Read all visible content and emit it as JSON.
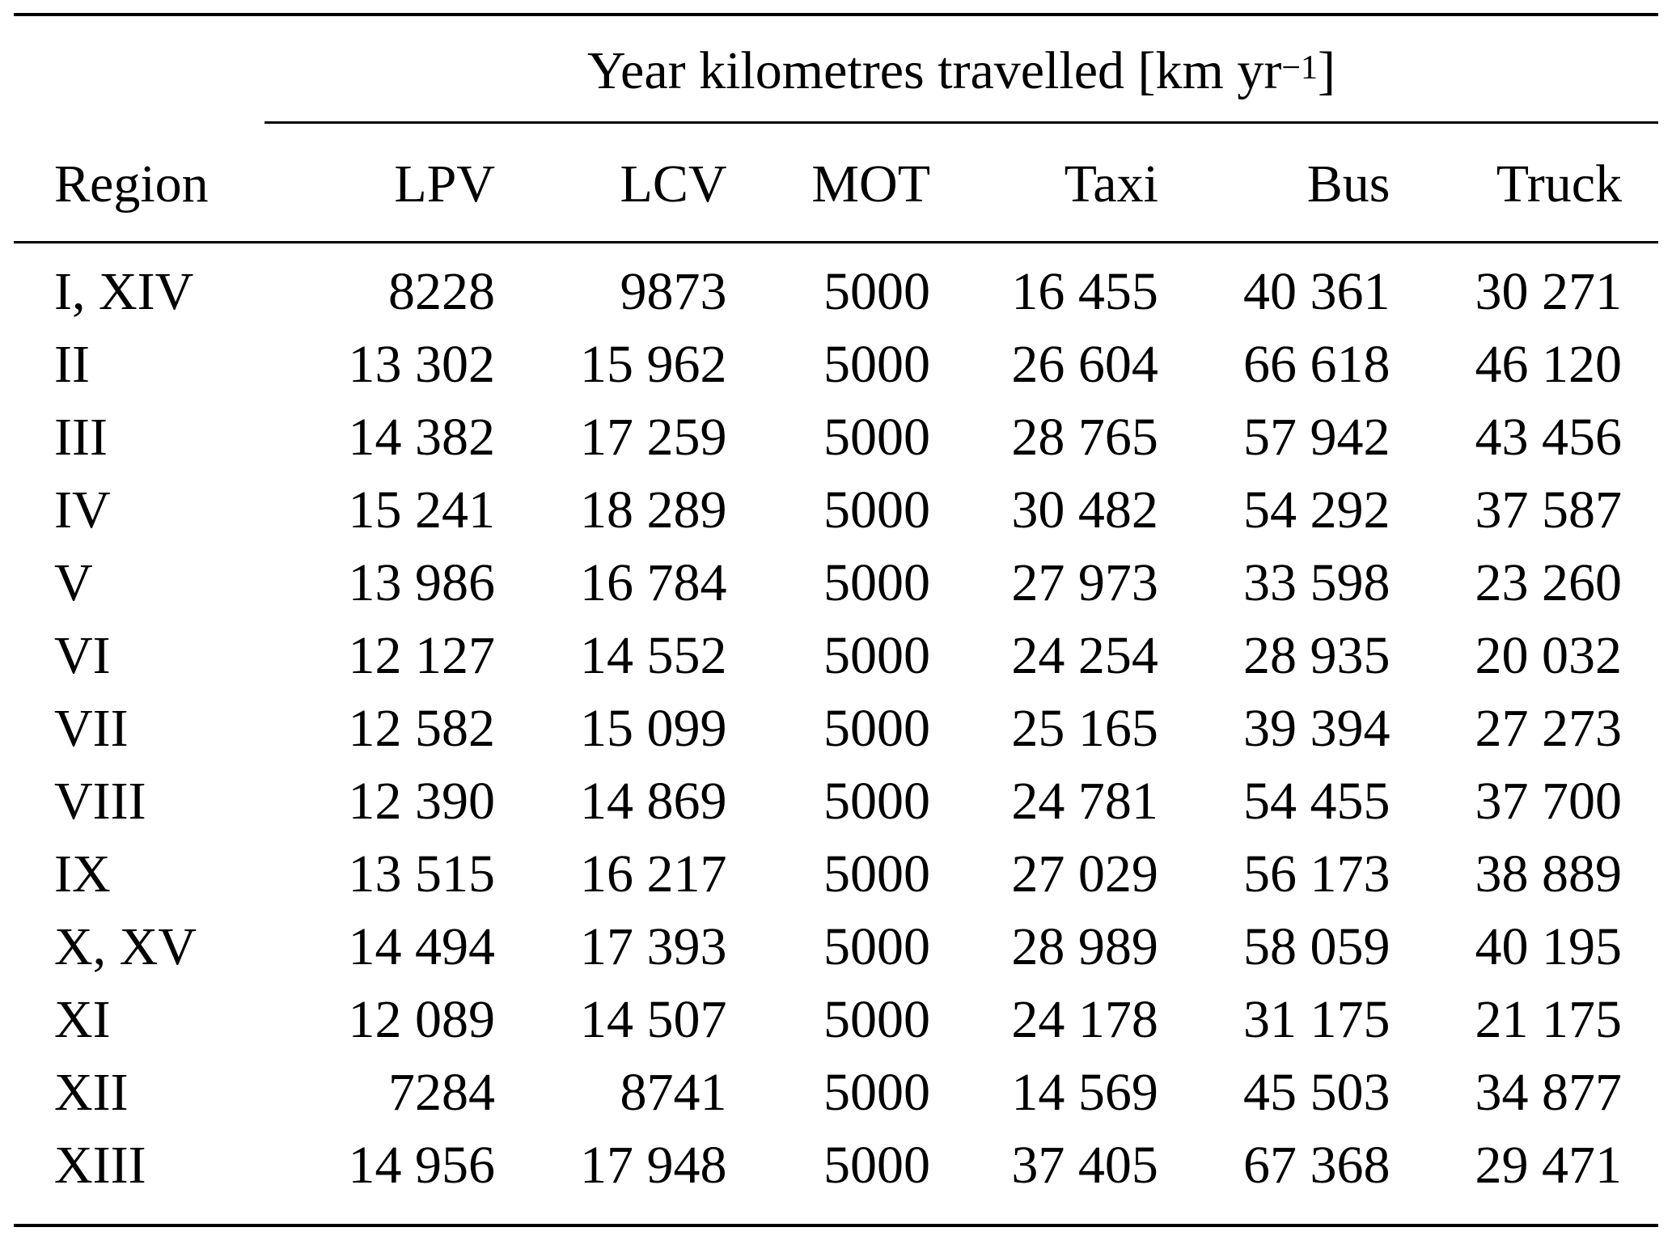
{
  "table": {
    "spanning_header": {
      "text": "Year kilometres travelled [km yr",
      "superscript": "−1",
      "close": "]"
    },
    "columns": [
      "Region",
      "LPV",
      "LCV",
      "MOT",
      "Taxi",
      "Bus",
      "Truck"
    ],
    "rows": [
      [
        "I, XIV",
        "8228",
        "9873",
        "5000",
        "16 455",
        "40 361",
        "30 271"
      ],
      [
        "II",
        "13 302",
        "15 962",
        "5000",
        "26 604",
        "66 618",
        "46 120"
      ],
      [
        "III",
        "14 382",
        "17 259",
        "5000",
        "28 765",
        "57 942",
        "43 456"
      ],
      [
        "IV",
        "15 241",
        "18 289",
        "5000",
        "30 482",
        "54 292",
        "37 587"
      ],
      [
        "V",
        "13 986",
        "16 784",
        "5000",
        "27 973",
        "33 598",
        "23 260"
      ],
      [
        "VI",
        "12 127",
        "14 552",
        "5000",
        "24 254",
        "28 935",
        "20 032"
      ],
      [
        "VII",
        "12 582",
        "15 099",
        "5000",
        "25 165",
        "39 394",
        "27 273"
      ],
      [
        "VIII",
        "12 390",
        "14 869",
        "5000",
        "24 781",
        "54 455",
        "37 700"
      ],
      [
        "IX",
        "13 515",
        "16 217",
        "5000",
        "27 029",
        "56 173",
        "38 889"
      ],
      [
        "X, XV",
        "14 494",
        "17 393",
        "5000",
        "28 989",
        "58 059",
        "40 195"
      ],
      [
        "XI",
        "12 089",
        "14 507",
        "5000",
        "24 178",
        "31 175",
        "21 175"
      ],
      [
        "XII",
        "7284",
        "8741",
        "5000",
        "14 569",
        "45 503",
        "34 877"
      ],
      [
        "XIII",
        "14 956",
        "17 948",
        "5000",
        "37 405",
        "67 368",
        "29 471"
      ]
    ]
  }
}
